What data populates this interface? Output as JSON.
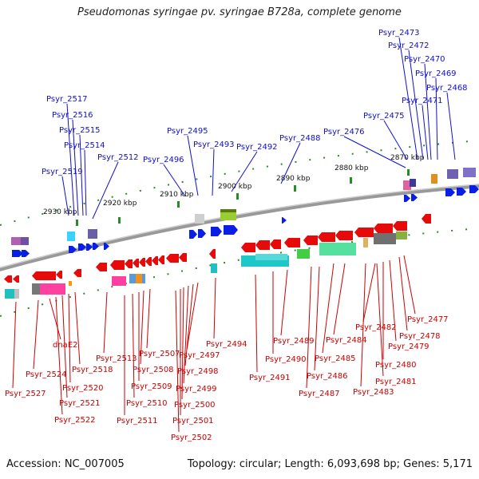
{
  "title": "Pseudomonas syringae pv. syringae B728a, complete genome",
  "accession_label": "Accession: NC_007005",
  "topology_label": "Topology: circular; Length: 6,093,698 bp; Genes: 5,171",
  "ticks": [
    "2930 kbp",
    "2920 kbp",
    "2910 kbp",
    "2900 kbp",
    "2890 kbp",
    "2880 kbp",
    "2870 kbp"
  ],
  "top_labels": [
    "Psyr_2473",
    "Psyr_2472",
    "Psyr_2470",
    "Psyr_2469",
    "Psyr_2468",
    "Psyr_2471",
    "Psyr_2475",
    "Psyr_2476",
    "Psyr_2488",
    "Psyr_2492",
    "Psyr_2493",
    "Psyr_2495",
    "Psyr_2496",
    "Psyr_2512",
    "Psyr_2517",
    "Psyr_2516",
    "Psyr_2515",
    "Psyr_2514",
    "Psyr_2519"
  ],
  "bottom_labels": [
    "Psyr_2477",
    "Psyr_2478",
    "Psyr_2479",
    "Psyr_2480",
    "Psyr_2481",
    "Psyr_2482",
    "Psyr_2483",
    "Psyr_2484",
    "Psyr_2485",
    "Psyr_2486",
    "Psyr_2487",
    "Psyr_2489",
    "Psyr_2490",
    "Psyr_2491",
    "Psyr_2494",
    "Psyr_2497",
    "Psyr_2498",
    "Psyr_2499",
    "Psyr_2500",
    "Psyr_2501",
    "Psyr_2502",
    "Psyr_2507",
    "Psyr_2508",
    "Psyr_2509",
    "Psyr_2510",
    "Psyr_2511",
    "Psyr_2513",
    "Psyr_2518",
    "Psyr_2520",
    "Psyr_2521",
    "Psyr_2522",
    "dnaE2",
    "Psyr_2524",
    "Psyr_2527"
  ],
  "colors": {
    "top_label": "#1010cc",
    "bottom_label": "#cc0000",
    "forward_gene": "#0a1ee6",
    "reverse_gene": "#e60a0a",
    "tick": "#2a8a2a",
    "backbone": "#777777"
  }
}
